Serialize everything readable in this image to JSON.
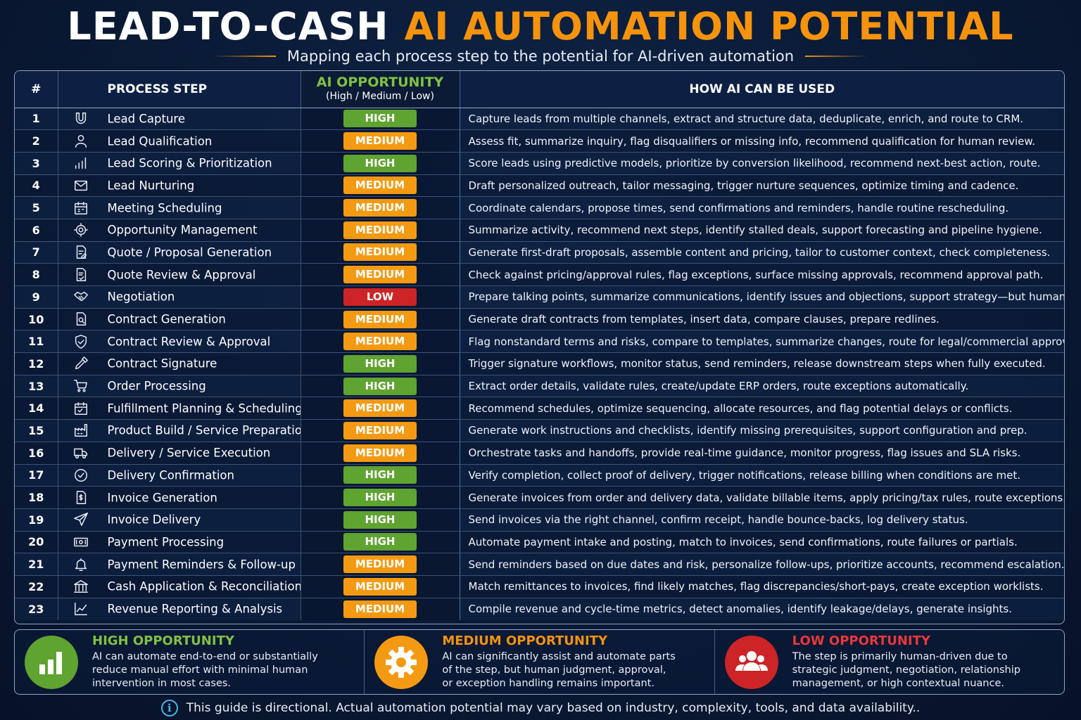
{
  "title": {
    "part1": "LEAD-TO-CASH",
    "part2": "AI AUTOMATION POTENTIAL"
  },
  "subtitle": "Mapping each process step to the potential for AI-driven automation",
  "headers": {
    "num": "#",
    "step": "PROCESS STEP",
    "ai_title": "AI OPPORTUNITY",
    "ai_sub": "(High / Medium / Low)",
    "how": "HOW AI CAN BE USED"
  },
  "rows": [
    {
      "num": "1",
      "icon": "magnet-icon",
      "step": "Lead Capture",
      "level": "HIGH",
      "how": "Capture leads from multiple channels, extract and structure data, deduplicate, enrich, and route to CRM."
    },
    {
      "num": "2",
      "icon": "person-icon",
      "step": "Lead Qualification",
      "level": "MEDIUM",
      "how": "Assess fit, summarize inquiry, flag disqualifiers or missing info, recommend qualification for human review."
    },
    {
      "num": "3",
      "icon": "bar-chart-icon",
      "step": "Lead Scoring & Prioritization",
      "level": "HIGH",
      "how": "Score leads using predictive models, prioritize by conversion likelihood, recommend next-best action, route."
    },
    {
      "num": "4",
      "icon": "envelope-icon",
      "step": "Lead Nurturing",
      "level": "MEDIUM",
      "how": "Draft personalized outreach, tailor messaging, trigger nurture sequences, optimize timing and cadence."
    },
    {
      "num": "5",
      "icon": "calendar-icon",
      "step": "Meeting Scheduling",
      "level": "MEDIUM",
      "how": "Coordinate calendars, propose times, send confirmations and reminders, handle routine rescheduling."
    },
    {
      "num": "6",
      "icon": "target-icon",
      "step": "Opportunity Management",
      "level": "MEDIUM",
      "how": "Summarize activity, recommend next steps, identify stalled deals, support forecasting and pipeline hygiene."
    },
    {
      "num": "7",
      "icon": "document-edit-icon",
      "step": "Quote / Proposal Generation",
      "level": "MEDIUM",
      "how": "Generate first-draft proposals, assemble content and pricing, tailor to customer context, check completeness."
    },
    {
      "num": "8",
      "icon": "document-check-icon",
      "step": "Quote Review & Approval",
      "level": "MEDIUM",
      "how": "Check against pricing/approval rules, flag exceptions, surface missing approvals, recommend approval path."
    },
    {
      "num": "9",
      "icon": "handshake-icon",
      "step": "Negotiation",
      "level": "LOW",
      "how": "Prepare talking points, summarize communications, identify issues and objections, support strategy—but human-led."
    },
    {
      "num": "10",
      "icon": "document-search-icon",
      "step": "Contract Generation",
      "level": "MEDIUM",
      "how": "Generate draft contracts from templates, insert data, compare clauses, prepare redlines."
    },
    {
      "num": "11",
      "icon": "shield-check-icon",
      "step": "Contract Review & Approval",
      "level": "MEDIUM",
      "how": "Flag nonstandard terms and risks, compare to templates, summarize changes, route for legal/commercial approval."
    },
    {
      "num": "12",
      "icon": "pen-icon",
      "step": "Contract Signature",
      "level": "HIGH",
      "how": "Trigger signature workflows, monitor status, send reminders, release downstream steps when fully executed."
    },
    {
      "num": "13",
      "icon": "cart-icon",
      "step": "Order Processing",
      "level": "HIGH",
      "how": "Extract order details, validate rules, create/update ERP orders, route exceptions automatically."
    },
    {
      "num": "14",
      "icon": "calendar-plan-icon",
      "step": "Fulfillment Planning & Scheduling",
      "level": "MEDIUM",
      "how": "Recommend schedules, optimize sequencing, allocate resources, and flag potential delays or conflicts."
    },
    {
      "num": "15",
      "icon": "factory-icon",
      "step": "Product Build / Service Preparation",
      "level": "MEDIUM",
      "how": "Generate work instructions and checklists, identify missing prerequisites, support configuration and prep."
    },
    {
      "num": "16",
      "icon": "truck-icon",
      "step": "Delivery / Service Execution",
      "level": "MEDIUM",
      "how": "Orchestrate tasks and handoffs, provide real-time guidance, monitor progress, flag issues and SLA risks."
    },
    {
      "num": "17",
      "icon": "check-circle-icon",
      "step": "Delivery Confirmation",
      "level": "HIGH",
      "how": "Verify completion, collect proof of delivery, trigger notifications, release billing when conditions are met."
    },
    {
      "num": "18",
      "icon": "invoice-icon",
      "step": "Invoice Generation",
      "level": "HIGH",
      "how": "Generate invoices from order and delivery data, validate billable items, apply pricing/tax rules, route exceptions."
    },
    {
      "num": "19",
      "icon": "paper-plane-icon",
      "step": "Invoice Delivery",
      "level": "HIGH",
      "how": "Send invoices via the right channel, confirm receipt, handle bounce-backs, log delivery status."
    },
    {
      "num": "20",
      "icon": "money-icon",
      "step": "Payment Processing",
      "level": "HIGH",
      "how": "Automate payment intake and posting, match to invoices, send confirmations, route failures or partials."
    },
    {
      "num": "21",
      "icon": "bell-icon",
      "step": "Payment Reminders & Follow-up",
      "level": "MEDIUM",
      "how": "Send reminders based on due dates and risk, personalize follow-ups, prioritize accounts, recommend escalation."
    },
    {
      "num": "22",
      "icon": "bank-icon",
      "step": "Cash Application & Reconciliation",
      "level": "MEDIUM",
      "how": "Match remittances to invoices, find likely matches, flag discrepancies/short-pays, create exception worklists."
    },
    {
      "num": "23",
      "icon": "line-chart-icon",
      "step": "Revenue Reporting & Analysis",
      "level": "MEDIUM",
      "how": "Compile revenue and cycle-time metrics, detect anomalies, identify leakage/delays, generate insights."
    }
  ],
  "legend": [
    {
      "key": "h",
      "icon": "bar-chart-icon",
      "title": "HIGH OPPORTUNITY",
      "desc": "AI can automate end-to-end or substantially\nreduce manual effort with minimal human\nintervention in most cases."
    },
    {
      "key": "m",
      "icon": "gear-icon",
      "title": "MEDIUM OPPORTUNITY",
      "desc": "AI can significantly assist and automate parts\nof the step, but human judgment, approval,\nor exception handling remains important."
    },
    {
      "key": "l",
      "icon": "people-icon",
      "title": "LOW OPPORTUNITY",
      "desc": "The step is primarily human-driven due to\nstrategic judgment, negotiation, relationship\nmanagement, or high contextual nuance."
    }
  ],
  "footer": "This guide is directional. Actual automation potential may vary based on industry, complexity, tools, and data availability..",
  "colors": {
    "high": "#5fa331",
    "medium": "#f49a12",
    "low": "#cc2427",
    "accent": "#f5930d",
    "background": "#0a1a35"
  }
}
